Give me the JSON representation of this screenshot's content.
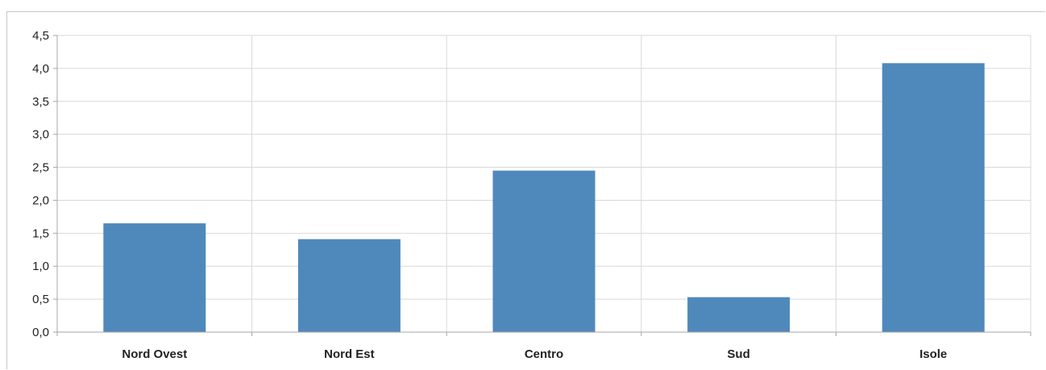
{
  "chart_data": {
    "type": "bar",
    "categories": [
      "Nord Ovest",
      "Nord Est",
      "Centro",
      "Sud",
      "Isole"
    ],
    "values": [
      1.65,
      1.41,
      2.45,
      0.53,
      4.08
    ],
    "ylim": [
      0,
      4.5
    ],
    "yticks": [
      "0,0",
      "0,5",
      "1,0",
      "1,5",
      "2,0",
      "2,5",
      "3,0",
      "3,5",
      "4,0",
      "4,5"
    ],
    "title": "",
    "xlabel": "",
    "ylabel": "",
    "grid": true,
    "colors": {
      "bar": "#4f89bc",
      "grid": "#d9d9d9",
      "axis": "#a6a6a6"
    }
  }
}
